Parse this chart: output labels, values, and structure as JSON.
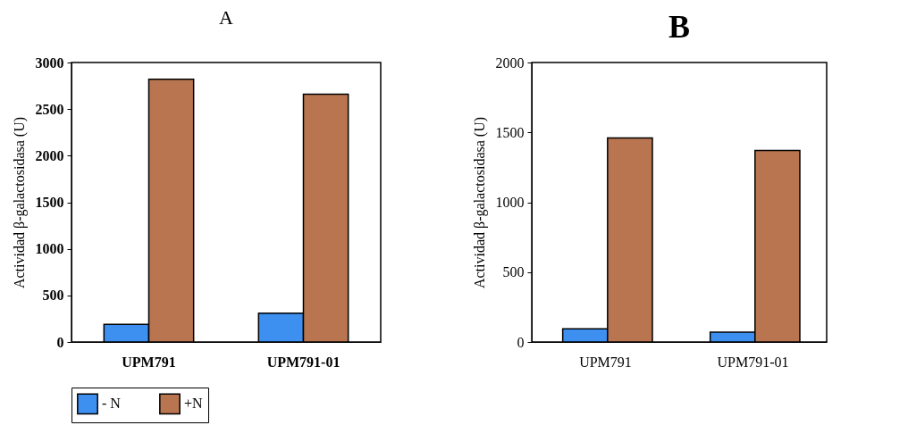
{
  "chart_data": [
    {
      "type": "bar",
      "title": "A",
      "ylabel": "Actividad  β-galactosidasa (U)",
      "categories": [
        "UPM791",
        "UPM791-01"
      ],
      "series": [
        {
          "name": "- N",
          "color": "#3d8ff0",
          "values": [
            190,
            310
          ]
        },
        {
          "name": "+N",
          "color": "#b87550",
          "values": [
            2820,
            2660
          ]
        }
      ],
      "ylim": [
        0,
        3000
      ],
      "yticks": [
        0,
        500,
        1000,
        1500,
        2000,
        2500,
        3000
      ],
      "grid": false,
      "legend": "bottom"
    },
    {
      "type": "bar",
      "title": "B",
      "ylabel": "Actividad  β-galactosidasa (U)",
      "categories": [
        "UPM791",
        "UPM791-01"
      ],
      "series": [
        {
          "name": "- N",
          "color": "#3d8ff0",
          "values": [
            95,
            70
          ]
        },
        {
          "name": "+N",
          "color": "#b87550",
          "values": [
            1460,
            1370
          ]
        }
      ],
      "ylim": [
        0,
        2000
      ],
      "yticks": [
        0,
        500,
        1000,
        1500,
        2000
      ],
      "grid": false,
      "legend": "bottom"
    }
  ]
}
